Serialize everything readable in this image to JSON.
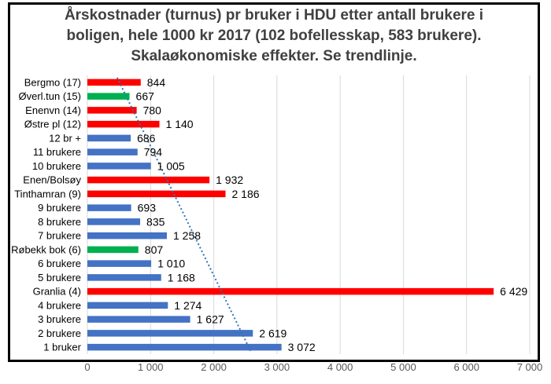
{
  "chart_data": {
    "type": "bar",
    "orientation": "horizontal",
    "title_lines": [
      "Årskostnader (turnus) pr bruker i HDU etter antall brukere i",
      "boligen, hele 1000 kr 2017 (102 bofellesskap,  583 brukere).",
      "Skalaøkonomiske effekter. Se trendlinje."
    ],
    "categories": [
      "Bergmo (17)",
      "Øverl.tun (15)",
      "Enenvn (14)",
      "Østre pl (12)",
      "12 br +",
      "11 brukere",
      "10 brukere",
      "Enen/Bolsøy",
      "Tinthamran (9)",
      "9 brukere",
      "8 brukere",
      "7 brukere",
      "Røbekk bok (6)",
      "6 brukere",
      "5 brukere",
      "Granlia (4)",
      "4 brukere",
      "3 brukere",
      "2 brukere",
      "1 bruker"
    ],
    "values": [
      844,
      667,
      780,
      1140,
      686,
      794,
      1005,
      1932,
      2186,
      693,
      835,
      1258,
      807,
      1010,
      1168,
      6429,
      1274,
      1627,
      2619,
      3072
    ],
    "value_labels": [
      "844",
      "667",
      "780",
      "1 140",
      "686",
      "794",
      "1 005",
      "1 932",
      "2 186",
      "693",
      "835",
      "1 258",
      "807",
      "1 010",
      "1 168",
      "6 429",
      "1 274",
      "1 627",
      "2 619",
      "3 072"
    ],
    "bar_colors": [
      "#ff0000",
      "#00b050",
      "#ff0000",
      "#ff0000",
      "#4472c4",
      "#4472c4",
      "#4472c4",
      "#ff0000",
      "#ff0000",
      "#4472c4",
      "#4472c4",
      "#4472c4",
      "#00b050",
      "#4472c4",
      "#4472c4",
      "#ff0000",
      "#4472c4",
      "#4472c4",
      "#4472c4",
      "#4472c4"
    ],
    "x_ticks": [
      0,
      1000,
      2000,
      3000,
      4000,
      5000,
      6000,
      7000
    ],
    "x_tick_labels": [
      "0",
      "1 000",
      "2 000",
      "3 000",
      "4 000",
      "5 000",
      "6 000",
      "7 000"
    ],
    "xlim": [
      0,
      7000
    ],
    "grid": true,
    "trendline": {
      "type": "linear",
      "style": "dotted",
      "color": "#2e75b6",
      "from": {
        "category": "Bergmo (17)",
        "x": 470
      },
      "to": {
        "category": "1 bruker",
        "x": 2590
      }
    }
  }
}
